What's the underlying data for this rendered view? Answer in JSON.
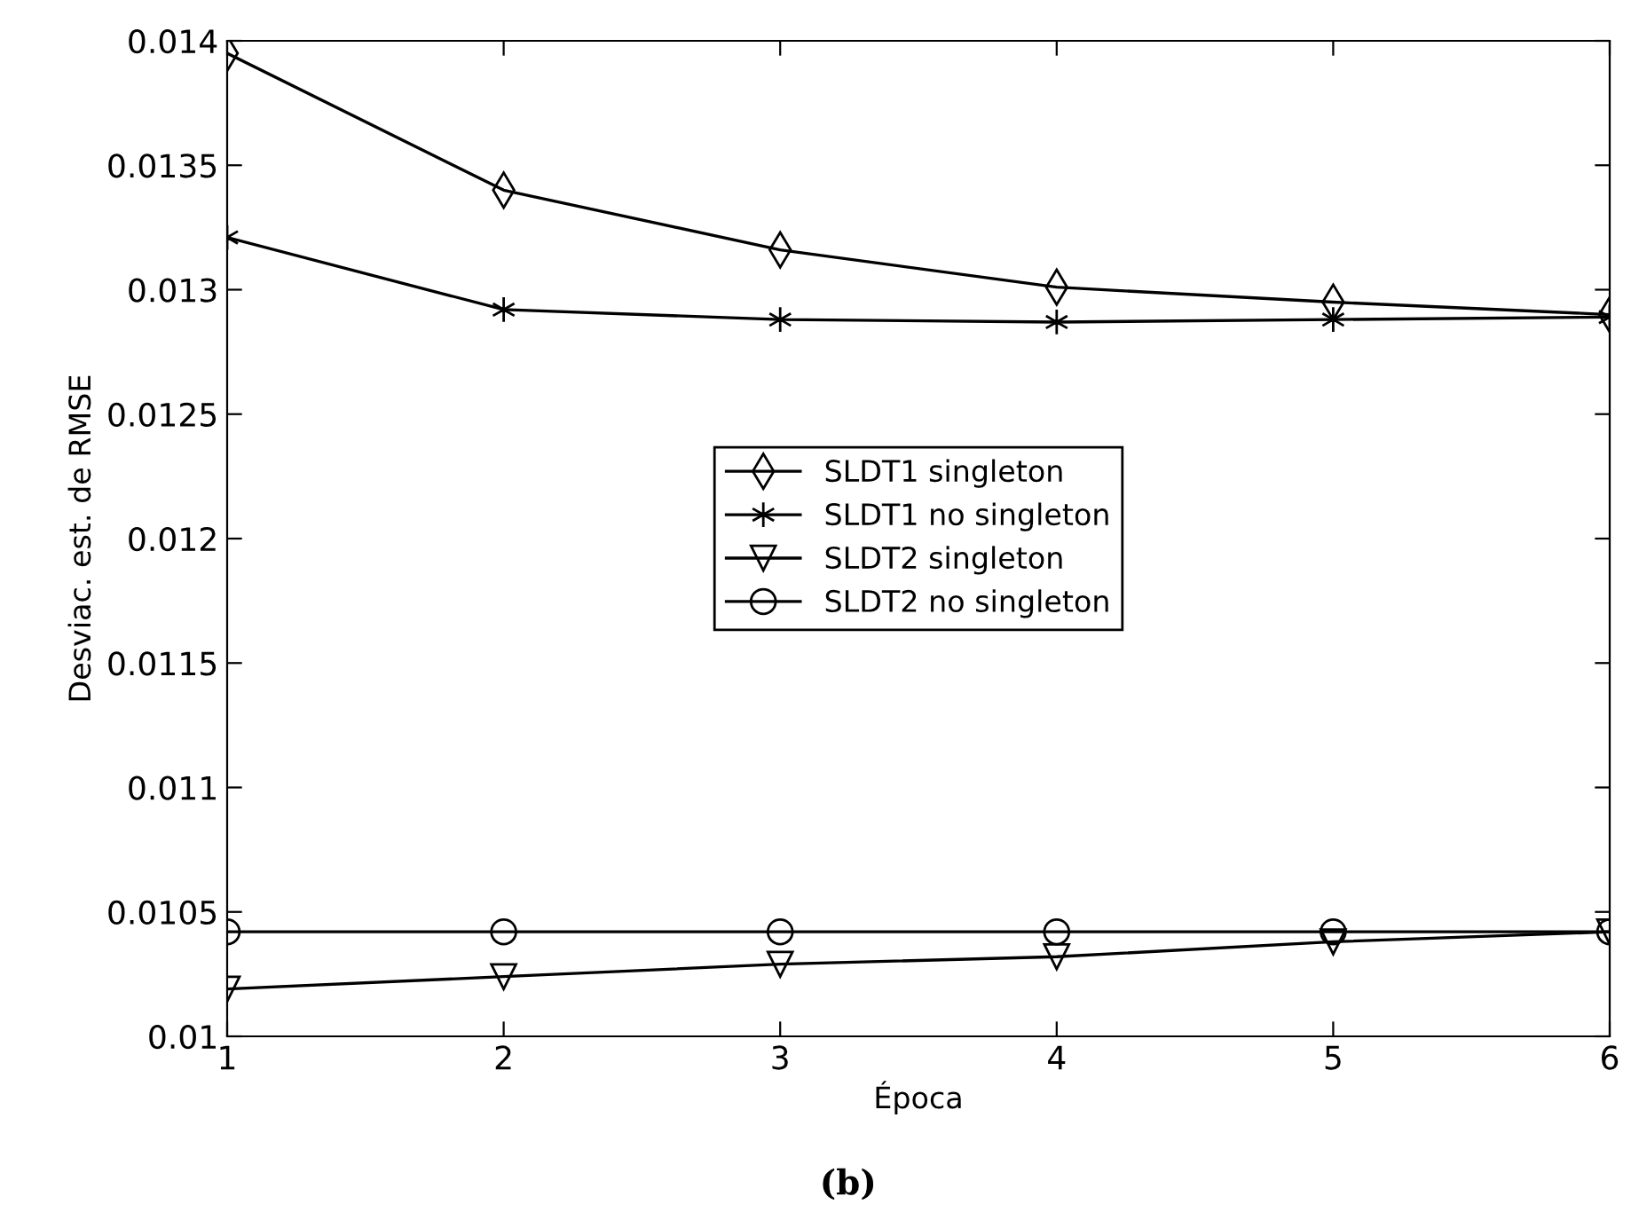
{
  "chart_data": {
    "type": "line",
    "xlabel": "Época",
    "ylabel": "Desviac. est. de RMSE",
    "x": [
      1,
      2,
      3,
      4,
      5,
      6
    ],
    "series": [
      {
        "name": "SLDT1 singleton",
        "color": "#000000",
        "marker": "diamond",
        "values": [
          0.01395,
          0.0134,
          0.01316,
          0.01301,
          0.01295,
          0.0129
        ]
      },
      {
        "name": "SLDT1 no singleton",
        "color": "#000000",
        "marker": "cross",
        "values": [
          0.01321,
          0.01292,
          0.01288,
          0.01287,
          0.01288,
          0.01289
        ]
      },
      {
        "name": "SLDT2 singleton",
        "color": "#000000",
        "marker": "triangle",
        "values": [
          0.01019,
          0.01024,
          0.01029,
          0.01032,
          0.01038,
          0.01042
        ]
      },
      {
        "name": "SLDT2 no singleton",
        "color": "#000000",
        "marker": "circle",
        "values": [
          0.01042,
          0.01042,
          0.01042,
          0.01042,
          0.01042,
          0.01042
        ]
      }
    ],
    "xlim": [
      1,
      6
    ],
    "xticks": [
      1,
      2,
      3,
      4,
      5,
      6
    ],
    "ylim": [
      0.01,
      0.014
    ],
    "yticks": [
      0.01,
      0.0105,
      0.011,
      0.0115,
      0.012,
      0.0125,
      0.013,
      0.0135,
      0.014
    ],
    "grid": false,
    "legend": "center",
    "line_style": "solid",
    "annotations": [
      "(b)"
    ]
  }
}
